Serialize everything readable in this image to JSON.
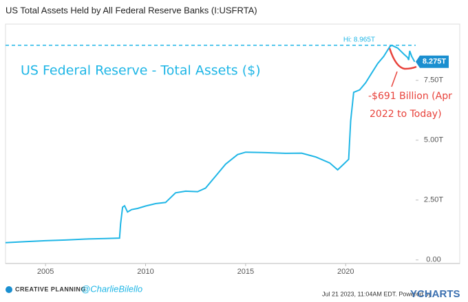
{
  "chart_data": {
    "type": "line",
    "title": "US Total Assets Held by All Federal Reserve Banks (I:USFRTA)",
    "annotation": "US Federal Reserve - Total Assets ($)",
    "note_lines": [
      "-$691 Billion (Apr",
      "2022 to Today)"
    ],
    "hi": {
      "value": 8.965,
      "label": "Hi: 8.965T"
    },
    "last": {
      "value": 8.275,
      "label": "8.275T"
    },
    "xlim": [
      2003,
      2023.5
    ],
    "ylim": [
      -0.15,
      9.85
    ],
    "xticks": [
      2005,
      2010,
      2015,
      2020
    ],
    "yticks": [
      {
        "value": 0,
        "label": "0.00"
      },
      {
        "value": 2.5,
        "label": "2.50T"
      },
      {
        "value": 5,
        "label": "5.00T"
      },
      {
        "value": 7.5,
        "label": "7.50T"
      }
    ],
    "series": [
      {
        "name": "US Total Assets Held by All Federal Reserve Banks",
        "color": "#1fb6e6",
        "x": [
          2003.0,
          2004.0,
          2005.0,
          2006.0,
          2007.0,
          2008.0,
          2008.7,
          2008.75,
          2008.85,
          2008.95,
          2009.1,
          2009.3,
          2009.6,
          2010.0,
          2010.5,
          2011.0,
          2011.5,
          2012.0,
          2012.6,
          2013.0,
          2013.5,
          2014.0,
          2014.6,
          2015.0,
          2016.0,
          2017.0,
          2017.8,
          2018.5,
          2019.2,
          2019.6,
          2019.9,
          2020.15,
          2020.25,
          2020.4,
          2020.7,
          2021.0,
          2021.3,
          2021.6,
          2021.9,
          2022.2,
          2022.3,
          2022.6,
          2022.9,
          2023.1,
          2023.15,
          2023.2,
          2023.3,
          2023.45
        ],
        "values": [
          0.72,
          0.76,
          0.8,
          0.83,
          0.87,
          0.89,
          0.91,
          1.5,
          2.2,
          2.26,
          2.0,
          2.1,
          2.15,
          2.25,
          2.35,
          2.4,
          2.8,
          2.87,
          2.85,
          3.0,
          3.5,
          4.0,
          4.4,
          4.5,
          4.48,
          4.45,
          4.46,
          4.3,
          4.05,
          3.76,
          4.0,
          4.2,
          5.8,
          7.0,
          7.1,
          7.4,
          7.8,
          8.2,
          8.5,
          8.9,
          8.965,
          8.85,
          8.6,
          8.45,
          8.35,
          8.73,
          8.5,
          8.275
        ]
      }
    ]
  },
  "footer": {
    "brand": "CREATIVE PLANNING",
    "handle": "@CharlieBilello",
    "timestamp": "Jul 21 2023, 11:04AM EDT.  Powered by",
    "source": "YCHARTS"
  }
}
